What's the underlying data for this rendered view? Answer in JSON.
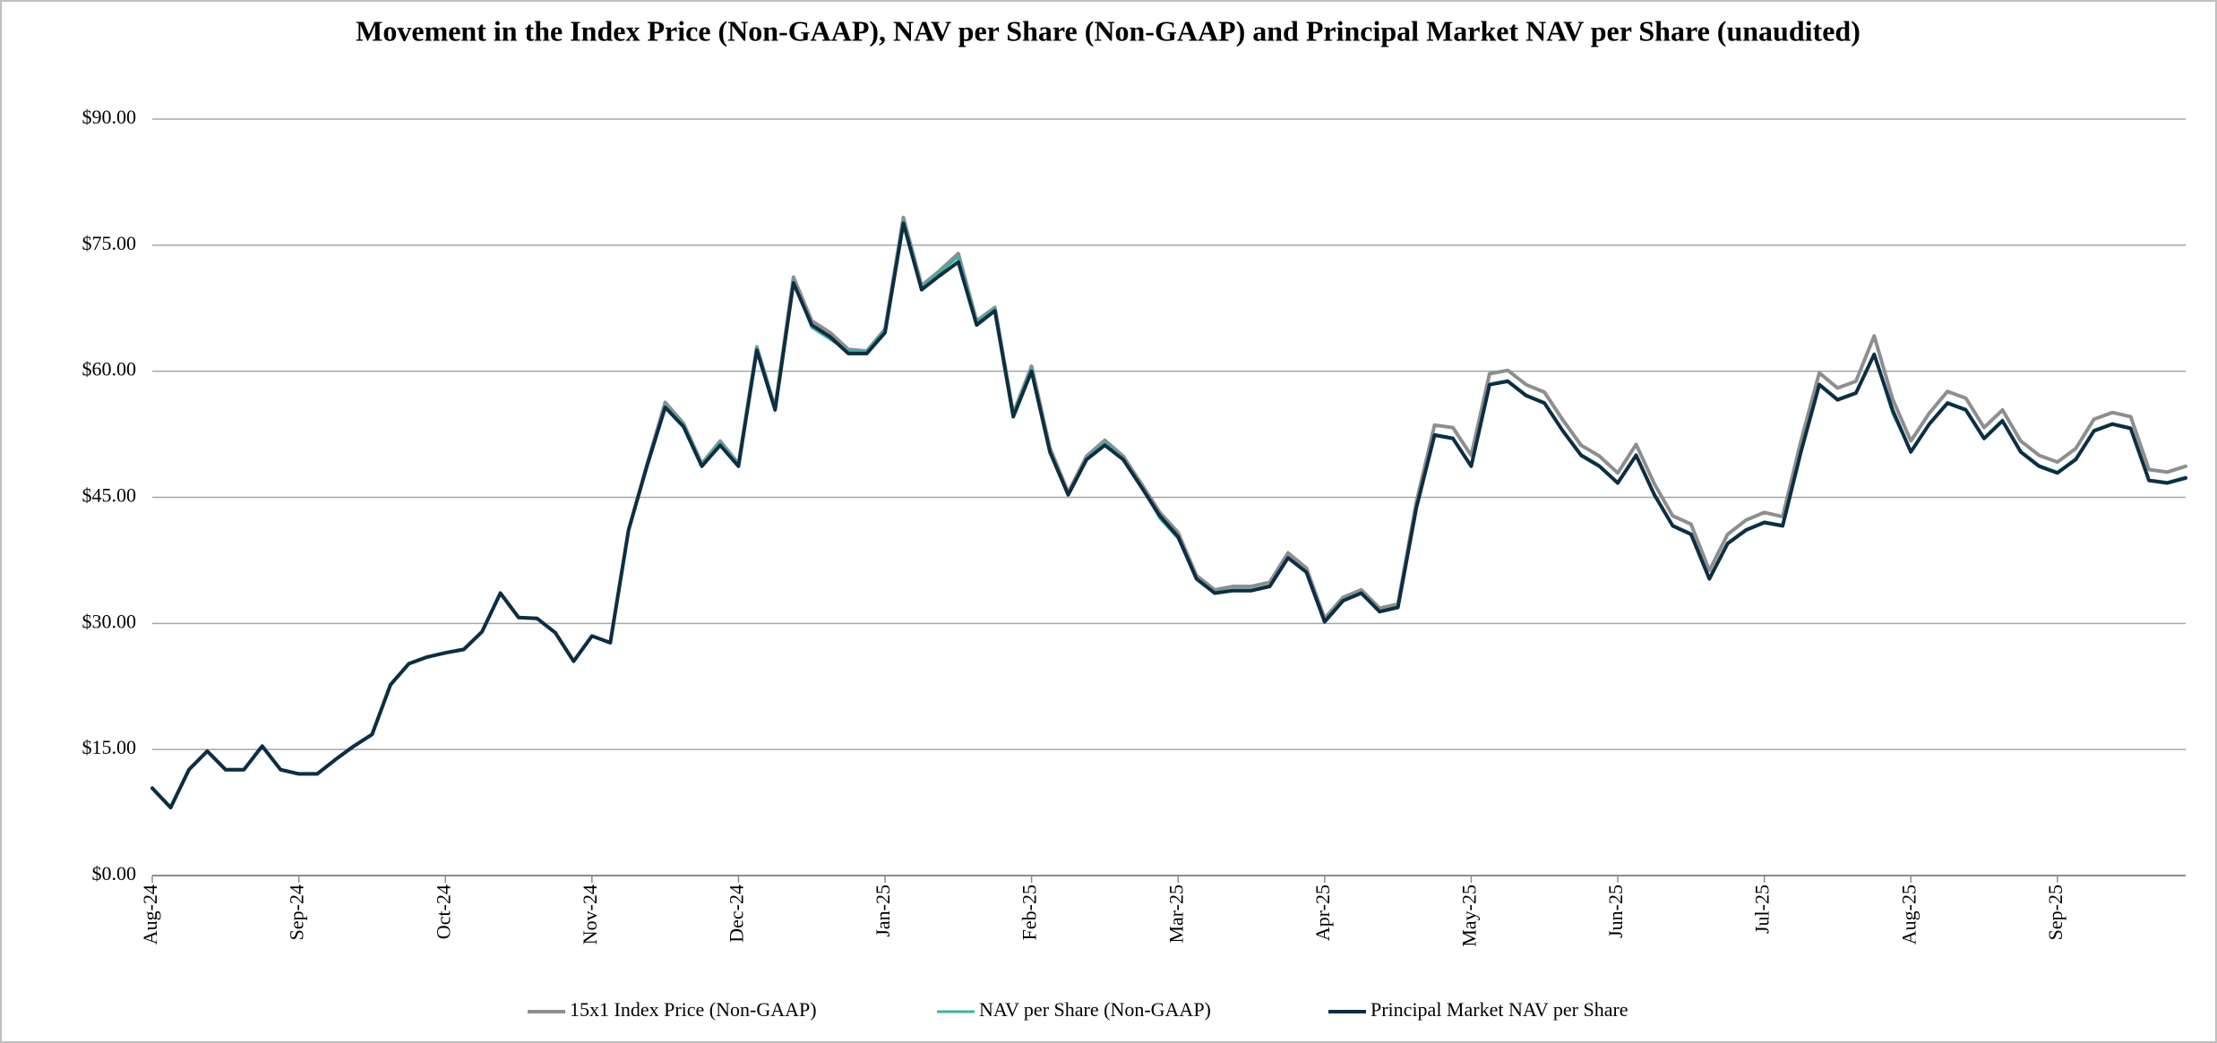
{
  "chart_data": {
    "type": "line",
    "title": "Movement in the Index Price (Non-GAAP), NAV per Share (Non-GAAP) and Principal Market NAV per Share (unaudited)",
    "categories": [
      "Aug-24",
      null,
      null,
      null,
      null,
      null,
      null,
      null,
      "Sep-24",
      null,
      null,
      null,
      null,
      null,
      null,
      null,
      "Oct-24",
      null,
      null,
      null,
      null,
      null,
      null,
      null,
      "Nov-24",
      null,
      null,
      null,
      null,
      null,
      null,
      null,
      "Dec-24",
      null,
      null,
      null,
      null,
      null,
      null,
      null,
      "Jan-25",
      null,
      null,
      null,
      null,
      null,
      null,
      null,
      "Feb-25",
      null,
      null,
      null,
      null,
      null,
      null,
      null,
      "Mar-25",
      null,
      null,
      null,
      null,
      null,
      null,
      null,
      "Apr-25",
      null,
      null,
      null,
      null,
      null,
      null,
      null,
      "May-25",
      null,
      null,
      null,
      null,
      null,
      null,
      null,
      "Jun-25",
      null,
      null,
      null,
      null,
      null,
      null,
      null,
      "Jul-25",
      null,
      null,
      null,
      null,
      null,
      null,
      null,
      "Aug-25",
      null,
      null,
      null,
      null,
      null,
      null,
      null,
      "Sep-25",
      null,
      null,
      null,
      null,
      null,
      null,
      null
    ],
    "series": [
      {
        "name": "15x1 Index Price (Non-GAAP)",
        "color": "#8e8e8e",
        "width": 4,
        "values": [
          10.4,
          8.1,
          12.6,
          14.8,
          12.6,
          12.6,
          15.4,
          12.6,
          12.1,
          12.1,
          13.8,
          15.4,
          16.8,
          22.7,
          25.2,
          26.0,
          26.5,
          26.9,
          29.0,
          33.6,
          30.7,
          30.6,
          28.9,
          25.5,
          28.5,
          27.7,
          41.1,
          48.9,
          56.3,
          53.8,
          49.0,
          51.7,
          49.0,
          62.9,
          55.7,
          71.2,
          66.0,
          64.6,
          62.6,
          62.4,
          65.0,
          78.3,
          70.2,
          72.0,
          74.0,
          66.0,
          67.6,
          55.0,
          60.6,
          50.9,
          45.6,
          49.9,
          51.8,
          49.9,
          46.6,
          43.2,
          40.8,
          35.7,
          34.0,
          34.4,
          34.4,
          34.9,
          38.4,
          36.6,
          30.6,
          33.1,
          34.0,
          31.8,
          32.3,
          44.4,
          53.6,
          53.3,
          50.0,
          59.7,
          60.1,
          58.4,
          57.5,
          54.2,
          51.2,
          49.9,
          47.9,
          51.3,
          46.6,
          42.8,
          41.8,
          36.3,
          40.6,
          42.3,
          43.2,
          42.7,
          51.7,
          59.8,
          58.0,
          58.8,
          64.2,
          56.7,
          51.7,
          55.0,
          57.6,
          56.8,
          53.3,
          55.4,
          51.7,
          50.0,
          49.2,
          50.8,
          54.3,
          55.1,
          54.6,
          48.3,
          48.0,
          48.7
        ]
      },
      {
        "name": "NAV per Share (Non-GAAP)",
        "color": "#3ab3a2",
        "width": 3,
        "values": [
          10.4,
          8.1,
          12.6,
          14.8,
          12.6,
          12.6,
          15.4,
          12.6,
          12.1,
          12.1,
          13.8,
          15.4,
          16.8,
          22.7,
          25.2,
          26.0,
          26.5,
          26.9,
          29.0,
          33.6,
          30.7,
          30.6,
          28.9,
          25.5,
          28.5,
          27.7,
          41.1,
          48.7,
          55.9,
          53.6,
          48.9,
          51.5,
          48.9,
          62.8,
          55.6,
          70.8,
          65.2,
          63.8,
          62.4,
          62.3,
          64.9,
          77.9,
          70.0,
          71.8,
          73.6,
          65.8,
          67.5,
          54.9,
          60.3,
          50.6,
          45.3,
          49.6,
          51.5,
          49.6,
          46.3,
          42.5,
          40.1,
          35.4,
          33.7,
          34.0,
          34.0,
          34.5,
          37.9,
          36.2,
          30.3,
          32.8,
          33.7,
          31.5,
          32.0,
          43.8,
          52.5,
          52.1,
          48.8,
          58.5,
          58.9,
          57.2,
          56.3,
          53.0,
          50.1,
          48.8,
          46.8,
          50.1,
          45.4,
          41.7,
          40.7,
          35.4,
          39.6,
          41.2,
          42.1,
          41.7,
          50.5,
          58.5,
          56.7,
          57.5,
          62.1,
          55.0,
          50.5,
          53.8,
          56.3,
          55.5,
          52.1,
          54.2,
          50.5,
          48.8,
          48.0,
          49.6,
          53.0,
          53.8,
          53.3,
          47.1,
          46.8,
          47.4
        ]
      },
      {
        "name": "Principal Market NAV per Share",
        "color": "#0c2e44",
        "width": 4,
        "values": [
          10.4,
          8.1,
          12.6,
          14.8,
          12.6,
          12.6,
          15.4,
          12.6,
          12.1,
          12.1,
          13.8,
          15.4,
          16.8,
          22.7,
          25.2,
          26.0,
          26.5,
          26.9,
          29.0,
          33.6,
          30.7,
          30.6,
          28.9,
          25.5,
          28.5,
          27.7,
          41.1,
          48.7,
          55.7,
          53.4,
          48.7,
          51.2,
          48.7,
          62.5,
          55.4,
          70.5,
          65.5,
          64.1,
          62.1,
          62.1,
          64.6,
          77.6,
          69.7,
          71.4,
          73.0,
          65.5,
          67.2,
          54.6,
          60.0,
          50.4,
          45.3,
          49.5,
          51.2,
          49.5,
          46.2,
          42.8,
          40.3,
          35.3,
          33.6,
          33.9,
          33.9,
          34.4,
          37.8,
          36.1,
          30.2,
          32.7,
          33.6,
          31.4,
          31.9,
          43.7,
          52.4,
          52.0,
          48.7,
          58.4,
          58.8,
          57.1,
          56.2,
          52.9,
          50.0,
          48.7,
          46.7,
          50.0,
          45.3,
          41.6,
          40.6,
          35.3,
          39.5,
          41.1,
          42.0,
          41.6,
          50.4,
          58.4,
          56.6,
          57.4,
          62.0,
          55.4,
          50.4,
          53.7,
          56.2,
          55.4,
          52.0,
          54.1,
          50.4,
          48.7,
          47.9,
          49.5,
          52.9,
          53.7,
          53.2,
          47.0,
          46.7,
          47.3
        ]
      }
    ],
    "ylim": [
      0,
      90
    ],
    "yticks": [
      {
        "value": 0,
        "label": "$0.00"
      },
      {
        "value": 15,
        "label": "$15.00"
      },
      {
        "value": 30,
        "label": "$30.00"
      },
      {
        "value": 45,
        "label": "$45.00"
      },
      {
        "value": 60,
        "label": "$60.00"
      },
      {
        "value": 75,
        "label": "$75.00"
      },
      {
        "value": 90,
        "label": "$90.00"
      }
    ],
    "grid": true,
    "legend": "bottom"
  }
}
